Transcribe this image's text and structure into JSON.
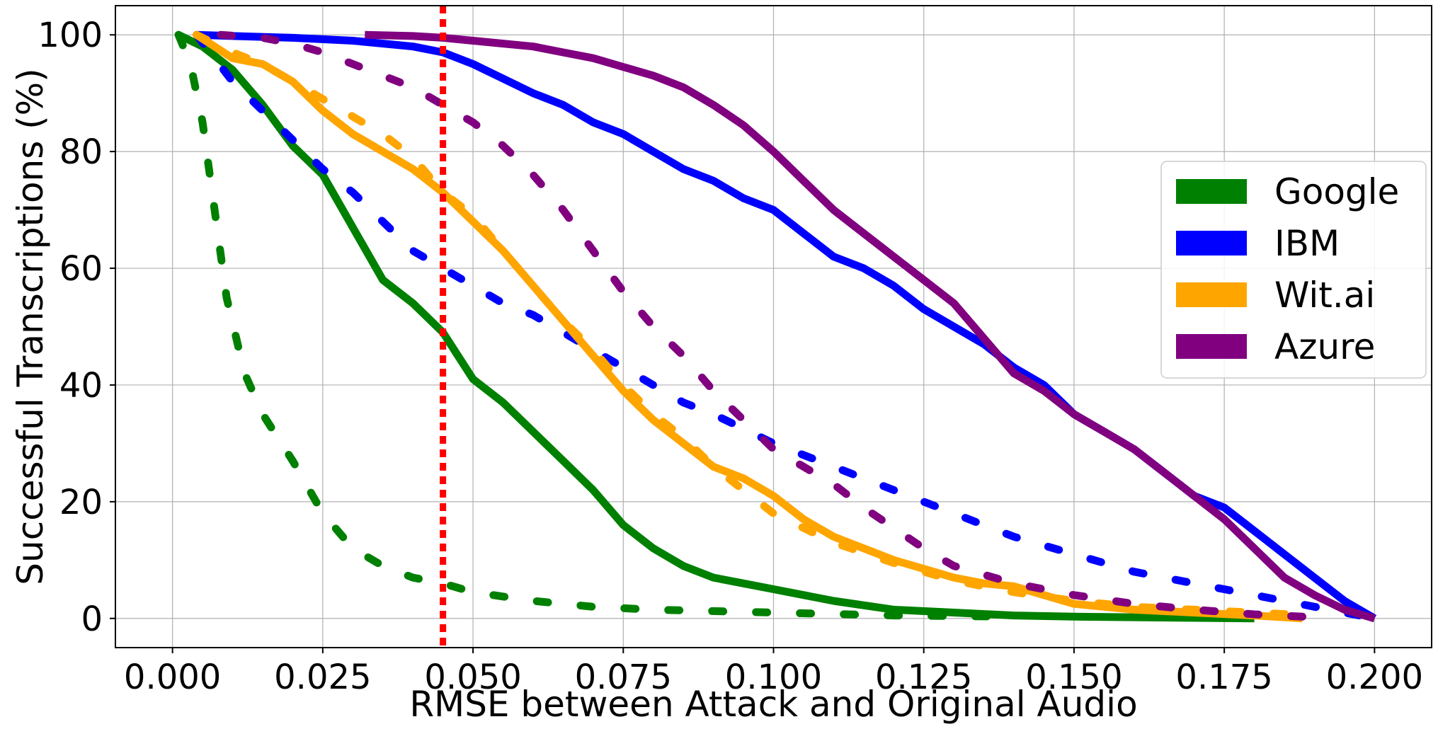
{
  "chart_data": {
    "type": "line",
    "xlabel": "RMSE between Attack and Original Audio",
    "ylabel": "Successful Transcriptions (%)",
    "xlim": [
      -0.0095,
      0.2095
    ],
    "ylim": [
      -5,
      105
    ],
    "xticks": [
      0.0,
      0.025,
      0.05,
      0.075,
      0.1,
      0.125,
      0.15,
      0.175,
      0.2
    ],
    "xtick_labels": [
      "0.000",
      "0.025",
      "0.050",
      "0.075",
      "0.100",
      "0.125",
      "0.150",
      "0.175",
      "0.200"
    ],
    "yticks": [
      0,
      20,
      40,
      60,
      80,
      100
    ],
    "ytick_labels": [
      "0",
      "20",
      "40",
      "60",
      "80",
      "100"
    ],
    "grid": true,
    "legend_position": "center-right",
    "vertical_marker": {
      "x": 0.045,
      "color": "#ff0000",
      "style": "dotted"
    },
    "legend": [
      {
        "name": "Google",
        "color": "#008000"
      },
      {
        "name": "IBM",
        "color": "#0000ff"
      },
      {
        "name": "Wit.ai",
        "color": "#ffa500"
      },
      {
        "name": "Azure",
        "color": "#800080"
      }
    ],
    "series": [
      {
        "name": "Google",
        "style": "solid",
        "color": "#008000",
        "x": [
          0.001,
          0.005,
          0.01,
          0.015,
          0.02,
          0.025,
          0.03,
          0.035,
          0.04,
          0.045,
          0.05,
          0.055,
          0.06,
          0.065,
          0.07,
          0.075,
          0.08,
          0.085,
          0.09,
          0.095,
          0.1,
          0.11,
          0.12,
          0.13,
          0.14,
          0.15,
          0.16,
          0.18
        ],
        "y": [
          100,
          98,
          94,
          88,
          81,
          76,
          67,
          58,
          54,
          49,
          41,
          37,
          32,
          27,
          22,
          16,
          12,
          9,
          7,
          6,
          5,
          3,
          1.5,
          1,
          0.5,
          0.3,
          0.2,
          0
        ]
      },
      {
        "name": "Google",
        "style": "dashed",
        "color": "#008000",
        "x": [
          0.001,
          0.003,
          0.005,
          0.007,
          0.009,
          0.012,
          0.015,
          0.02,
          0.025,
          0.03,
          0.035,
          0.04,
          0.045,
          0.05,
          0.06,
          0.07,
          0.08,
          0.1,
          0.12,
          0.14
        ],
        "y": [
          100,
          95,
          85,
          70,
          55,
          42,
          35,
          27,
          18,
          12,
          9,
          7,
          6,
          4.5,
          3,
          2,
          1.5,
          1,
          0.5,
          0.3
        ]
      },
      {
        "name": "IBM",
        "style": "solid",
        "color": "#0000ff",
        "x": [
          0.004,
          0.01,
          0.02,
          0.03,
          0.04,
          0.045,
          0.05,
          0.055,
          0.06,
          0.065,
          0.07,
          0.075,
          0.08,
          0.085,
          0.09,
          0.095,
          0.1,
          0.105,
          0.11,
          0.115,
          0.12,
          0.125,
          0.13,
          0.135,
          0.14,
          0.145,
          0.15,
          0.155,
          0.16,
          0.165,
          0.17,
          0.175,
          0.18,
          0.185,
          0.19,
          0.195,
          0.2
        ],
        "y": [
          100,
          99.8,
          99.5,
          99,
          98,
          97,
          95,
          92.5,
          90,
          88,
          85,
          83,
          80,
          77,
          75,
          72,
          70,
          66,
          62,
          60,
          57,
          53,
          50,
          47,
          43,
          40,
          35,
          32,
          29,
          25,
          21,
          19,
          15,
          11,
          7,
          3,
          0
        ]
      },
      {
        "name": "IBM",
        "style": "dashed",
        "color": "#0000ff",
        "x": [
          0.004,
          0.01,
          0.015,
          0.02,
          0.025,
          0.03,
          0.035,
          0.04,
          0.045,
          0.05,
          0.055,
          0.06,
          0.065,
          0.07,
          0.075,
          0.08,
          0.085,
          0.09,
          0.1,
          0.11,
          0.12,
          0.13,
          0.14,
          0.15,
          0.16,
          0.17,
          0.18,
          0.19,
          0.2
        ],
        "y": [
          100,
          92,
          87,
          82,
          77,
          73,
          68,
          63,
          60,
          57,
          54,
          52,
          49,
          46,
          43,
          40,
          37,
          35,
          30,
          26,
          22,
          18,
          14,
          11,
          8,
          6,
          4,
          2,
          0
        ]
      },
      {
        "name": "Wit.ai",
        "style": "solid",
        "color": "#ffa500",
        "x": [
          0.004,
          0.01,
          0.015,
          0.02,
          0.025,
          0.03,
          0.035,
          0.04,
          0.045,
          0.05,
          0.055,
          0.06,
          0.065,
          0.07,
          0.075,
          0.08,
          0.085,
          0.09,
          0.095,
          0.1,
          0.105,
          0.11,
          0.115,
          0.12,
          0.125,
          0.13,
          0.135,
          0.14,
          0.145,
          0.15,
          0.16,
          0.17,
          0.18,
          0.188
        ],
        "y": [
          100,
          96,
          95,
          92,
          87,
          83,
          80,
          77,
          73,
          68,
          63,
          57,
          51,
          45,
          39,
          34,
          30,
          26,
          24,
          21,
          17,
          14,
          12,
          10,
          8.5,
          7,
          6,
          5.5,
          4,
          2.5,
          1.5,
          1,
          0.5,
          0
        ]
      },
      {
        "name": "Wit.ai",
        "style": "dashed",
        "color": "#ffa500",
        "x": [
          0.004,
          0.01,
          0.015,
          0.02,
          0.025,
          0.03,
          0.035,
          0.04,
          0.045,
          0.05,
          0.055,
          0.06,
          0.065,
          0.07,
          0.075,
          0.08,
          0.085,
          0.09,
          0.095,
          0.1,
          0.11,
          0.12,
          0.13,
          0.14,
          0.15,
          0.16,
          0.17,
          0.18,
          0.19
        ],
        "y": [
          100,
          97,
          95,
          92,
          89,
          86,
          83,
          79,
          73,
          69,
          63,
          57,
          51,
          46,
          40,
          35,
          31,
          26,
          22,
          18,
          13,
          9.5,
          6.5,
          4.5,
          3,
          2,
          1.5,
          1,
          0.5
        ]
      },
      {
        "name": "Azure",
        "style": "solid",
        "color": "#800080",
        "x": [
          0.032,
          0.04,
          0.045,
          0.05,
          0.055,
          0.06,
          0.065,
          0.07,
          0.075,
          0.08,
          0.085,
          0.09,
          0.095,
          0.1,
          0.105,
          0.11,
          0.115,
          0.12,
          0.125,
          0.13,
          0.135,
          0.14,
          0.145,
          0.15,
          0.155,
          0.16,
          0.165,
          0.17,
          0.175,
          0.18,
          0.185,
          0.19,
          0.195,
          0.2
        ],
        "y": [
          100,
          99.8,
          99.5,
          99,
          98.5,
          98,
          97,
          96,
          94.5,
          93,
          91,
          88,
          84.5,
          80,
          75,
          70,
          66,
          62,
          58,
          54,
          48,
          42,
          39,
          35,
          32,
          29,
          25,
          21,
          17,
          12,
          7,
          4,
          1.5,
          0
        ]
      },
      {
        "name": "Azure",
        "style": "dashed",
        "color": "#800080",
        "x": [
          0.008,
          0.015,
          0.02,
          0.025,
          0.03,
          0.035,
          0.04,
          0.045,
          0.05,
          0.055,
          0.06,
          0.065,
          0.07,
          0.075,
          0.08,
          0.085,
          0.09,
          0.095,
          0.1,
          0.105,
          0.11,
          0.115,
          0.12,
          0.125,
          0.13,
          0.14,
          0.15,
          0.16,
          0.17,
          0.18,
          0.19
        ],
        "y": [
          100,
          99.5,
          98.5,
          97,
          95,
          93,
          91,
          88,
          85,
          81,
          76,
          70,
          63,
          56,
          50,
          45,
          39,
          34,
          29,
          26,
          23,
          19,
          15.5,
          12,
          9,
          6,
          4,
          2.5,
          1.5,
          0.7,
          0.2
        ]
      }
    ]
  }
}
